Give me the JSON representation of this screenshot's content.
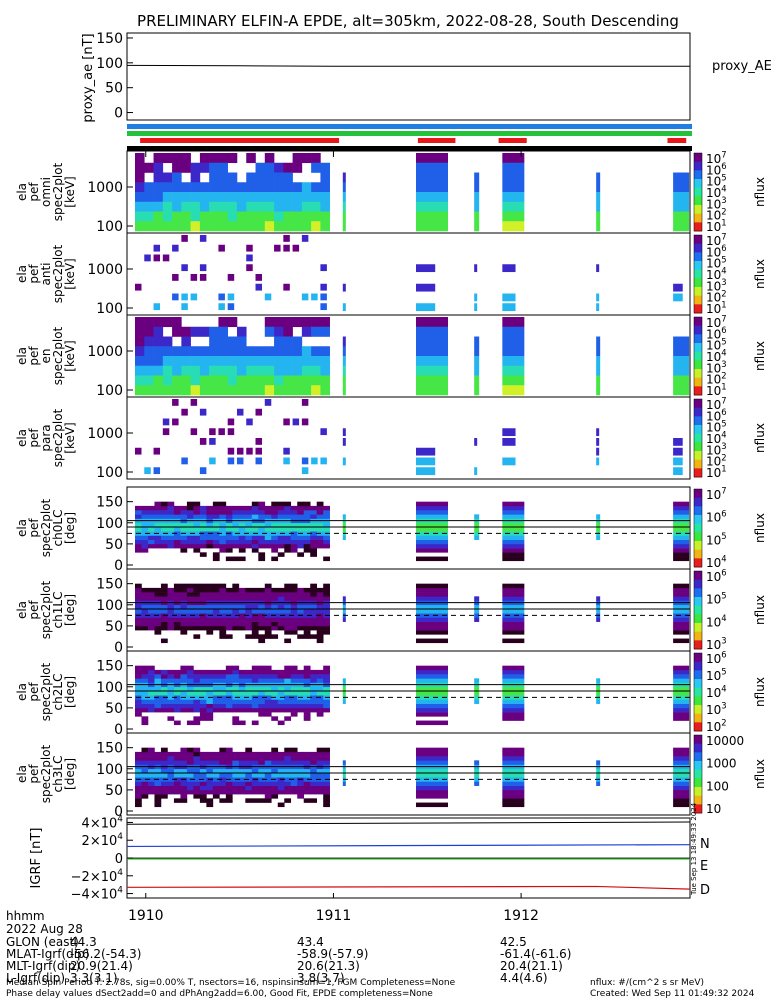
{
  "title": "PRELIMINARY ELFIN-A EPDE, alt=305km, 2022-08-28, South Descending",
  "side_stamp": "Tue Sep 13 18:49:33 2024",
  "colors": {
    "bar_blue": "#1e7fe0",
    "bar_green": "#23c23a",
    "bar_red": "#e81818",
    "bar_black": "#000000",
    "trace_N": "#1c3fd8",
    "trace_E": "#15b015",
    "trace_D": "#d01010"
  },
  "colorbar_colors": [
    "#6a0080",
    "#3c28c8",
    "#1e6ef0",
    "#28c8f0",
    "#28e6a0",
    "#3ce63c",
    "#c8f028",
    "#f0b414",
    "#e61e1e"
  ],
  "heatmap_colors": {
    "v": "#6a0080",
    "n": "#3c28c8",
    "b": "#2060e8",
    "c": "#24b4f0",
    "a": "#28dcb4",
    "g": "#46e646",
    "y": "#d2f028",
    "k": "#28001e"
  },
  "proxy_panel": {
    "ylabel": "proxy_ae [nT]",
    "yticks": [
      0,
      50,
      100,
      150
    ],
    "ylim": [
      -15,
      160
    ],
    "side_label": "proxy_AE"
  },
  "bars": [
    "blue",
    "green",
    "red",
    "black"
  ],
  "red_bar_segments": [
    [
      1909.97,
      1911.03
    ],
    [
      1911.45,
      1911.65
    ],
    [
      1911.88,
      1912.03
    ],
    [
      1912.78,
      1912.88
    ]
  ],
  "spectrogram_panels": [
    {
      "ylabel": [
        "ela",
        "pef",
        "omni",
        "spec2plot",
        "[keV]"
      ],
      "yticks": [
        "1000",
        "100"
      ],
      "cbar_ticks": [
        "10^7",
        "10^6",
        "10^5",
        "10^4",
        "10^3",
        "10^2",
        "10^1"
      ],
      "cbar_label": "nflux"
    },
    {
      "ylabel": [
        "ela",
        "pef",
        "anti",
        "spec2plot",
        "[keV]"
      ],
      "yticks": [
        "1000",
        "100"
      ],
      "cbar_ticks": [
        "10^7",
        "10^6",
        "10^5",
        "10^4",
        "10^3",
        "10^2",
        "10^1"
      ],
      "cbar_label": "nflux"
    },
    {
      "ylabel": [
        "ela",
        "pef",
        "en",
        "spec2plot",
        "[keV]"
      ],
      "yticks": [
        "1000",
        "100"
      ],
      "cbar_ticks": [
        "10^7",
        "10^6",
        "10^5",
        "10^4",
        "10^3",
        "10^2",
        "10^1"
      ],
      "cbar_label": "nflux"
    },
    {
      "ylabel": [
        "ela",
        "pef",
        "para",
        "spec2plot",
        "[keV]"
      ],
      "yticks": [
        "1000",
        "100"
      ],
      "cbar_ticks": [
        "10^7",
        "10^6",
        "10^5",
        "10^4",
        "10^3",
        "10^2",
        "10^1"
      ],
      "cbar_label": "nflux"
    }
  ],
  "pitch_panels": [
    {
      "ylabel": [
        "ela",
        "pef",
        "spec2plot",
        "ch0LC",
        "[deg]"
      ],
      "yticks": [
        "150",
        "100",
        "50",
        "0"
      ],
      "cbar_ticks": [
        "10^7",
        "10^6",
        "10^5",
        "10^4"
      ],
      "cbar_label": "nflux"
    },
    {
      "ylabel": [
        "ela",
        "pef",
        "spec2plot",
        "ch1LC",
        "[deg]"
      ],
      "yticks": [
        "150",
        "100",
        "50",
        "0"
      ],
      "cbar_ticks": [
        "10^6",
        "10^5",
        "10^4",
        "10^3"
      ],
      "cbar_label": "nflux"
    },
    {
      "ylabel": [
        "ela",
        "pef",
        "spec2plot",
        "ch2LC",
        "[deg]"
      ],
      "yticks": [
        "150",
        "100",
        "50",
        "0"
      ],
      "cbar_ticks": [
        "10^6",
        "10^5",
        "10^4",
        "10^3",
        "10^2"
      ],
      "cbar_label": "nflux"
    },
    {
      "ylabel": [
        "ela",
        "pef",
        "spec2plot",
        "ch3LC",
        "[deg]"
      ],
      "yticks": [
        "150",
        "100",
        "50",
        "0"
      ],
      "cbar_ticks": [
        "10000",
        "1000",
        "100",
        "10"
      ],
      "cbar_label": "nflux"
    }
  ],
  "grf_panel": {
    "ylabel": "IGRF [nT]",
    "yticks": [
      "4×10^4",
      "2×10^4",
      "0",
      "−2×10^4",
      "−4×10^4"
    ],
    "labels": [
      "N",
      "E",
      "D"
    ]
  },
  "chart_data": {
    "type": "heatmap",
    "title": "PRELIMINARY ELFIN-A EPDE, alt=305km, 2022-08-28, South Descending",
    "x_axis": {
      "label": "hhmm",
      "ticks": [
        "1910",
        "1911",
        "1912"
      ],
      "range_hhmm": [
        1909.9,
        1912.9
      ]
    },
    "proxy_ae_series": {
      "name": "proxy_AE",
      "x": [
        1909.9,
        1910.5,
        1911.0,
        1911.5,
        1912.0,
        1912.9
      ],
      "y": [
        95,
        94,
        93,
        93,
        93,
        93
      ]
    },
    "igrf_series": [
      {
        "name": "N",
        "x": [
          1909.9,
          1912.9
        ],
        "y": [
          13000,
          15000
        ]
      },
      {
        "name": "E",
        "x": [
          1909.9,
          1912.9
        ],
        "y": [
          -1000,
          -1000
        ]
      },
      {
        "name": "D",
        "x": [
          1909.9,
          1912.4,
          1912.9
        ],
        "y": [
          -33000,
          -32000,
          -35000
        ]
      }
    ],
    "pitch_reference_lines_deg": [
      90,
      105,
      75
    ]
  },
  "footer": {
    "hhmm": "hhmm",
    "date": "2022 Aug 28",
    "rows": [
      {
        "label": "GLON (east)",
        "values": [
          "44.3",
          "43.4",
          "42.5"
        ]
      },
      {
        "label": "MLAT-Igrf(dip)",
        "values": [
          "-56.2(-54.3)",
          "-58.9(-57.9)",
          "-61.4(-61.6)"
        ]
      },
      {
        "label": "MLT-Igrf(dip)",
        "values": [
          "20.9(21.4)",
          "20.6(21.3)",
          "20.4(21.1)"
        ]
      },
      {
        "label": "L-Igrf(dip)",
        "values": [
          "3.3(3.1)",
          "3.8(3.7)",
          "4.4(4.6)"
        ]
      }
    ],
    "line1_left": "Median Spin Period T: 2.78s, sig=0.00% T, nsectors=16, nspinsinsum=1, FGM Completeness=None",
    "line1_right": "nflux: #/(cm^2 s sr MeV)",
    "line2_left": "Phase delay values dSect2add=0 and dPhAng2add=6.00, Good Fit, EPDE completeness=None",
    "line2_right": "Created: Wed Sep 11 01:49:32 2024"
  }
}
